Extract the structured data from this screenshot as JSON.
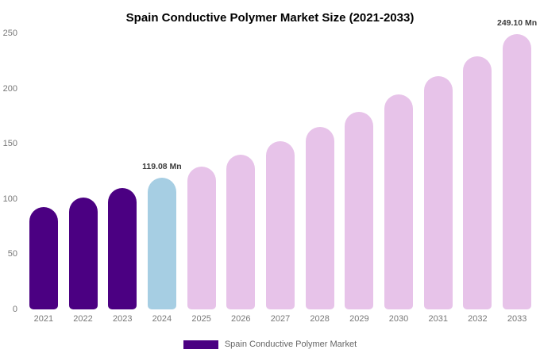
{
  "title": "Spain Conductive Polymer Market Size (2021-2033)",
  "chart_data": {
    "type": "bar",
    "title": "Spain Conductive Polymer Market Size (2021-2033)",
    "categories": [
      "2021",
      "2022",
      "2023",
      "2024",
      "2025",
      "2026",
      "2027",
      "2028",
      "2029",
      "2030",
      "2031",
      "2032",
      "2033"
    ],
    "values": [
      93,
      101,
      110,
      119.08,
      129,
      140,
      152,
      165,
      179,
      195,
      211,
      229,
      249.1
    ],
    "bar_colors": [
      "#4b0082",
      "#4b0082",
      "#4b0082",
      "#a6cee3",
      "#e7c3e9",
      "#e7c3e9",
      "#e7c3e9",
      "#e7c3e9",
      "#e7c3e9",
      "#e7c3e9",
      "#e7c3e9",
      "#e7c3e9",
      "#e7c3e9"
    ],
    "xlabel": "",
    "ylabel": "",
    "ylim": [
      0,
      250
    ],
    "yticks": [
      0,
      50,
      100,
      150,
      200,
      250
    ],
    "grid": false,
    "annotations": [
      {
        "index": 3,
        "text": "119.08 Mn"
      },
      {
        "index": 12,
        "text": "249.10 Mn"
      }
    ],
    "legend": {
      "position": "bottom",
      "label": "Spain Conductive Polymer Market",
      "color": "#4b0082"
    }
  }
}
